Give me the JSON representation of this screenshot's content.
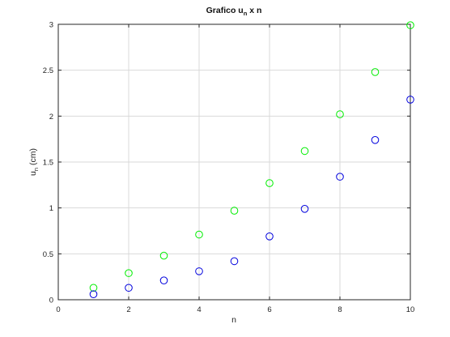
{
  "chart_data": {
    "type": "scatter",
    "title": "Grafico u",
    "title_sub": "n",
    "title_suffix": " x n",
    "xlabel": "n",
    "ylabel": "u",
    "ylabel_sub": "n",
    "ylabel_suffix": " (cm)",
    "xlim": [
      0,
      10
    ],
    "ylim": [
      0,
      3
    ],
    "xticks": [
      0,
      2,
      4,
      6,
      8,
      10
    ],
    "xtick_labels": [
      "0",
      "2",
      "4",
      "6",
      "8",
      "10"
    ],
    "yticks": [
      0,
      0.5,
      1,
      1.5,
      2,
      2.5,
      3
    ],
    "ytick_labels": [
      "0",
      "0.5",
      "1",
      "1.5",
      "2",
      "2.5",
      "3"
    ],
    "grid": true,
    "x": [
      1,
      2,
      3,
      4,
      5,
      6,
      7,
      8,
      9,
      10
    ],
    "series": [
      {
        "color": "#00ee00",
        "marker": "circle-open",
        "values": [
          0.13,
          0.29,
          0.48,
          0.71,
          0.97,
          1.27,
          1.62,
          2.02,
          2.48,
          2.99
        ]
      },
      {
        "color": "#0000dd",
        "marker": "circle-open",
        "values": [
          0.06,
          0.13,
          0.21,
          0.31,
          0.42,
          0.69,
          0.99,
          1.34,
          1.74,
          2.18
        ]
      }
    ]
  }
}
